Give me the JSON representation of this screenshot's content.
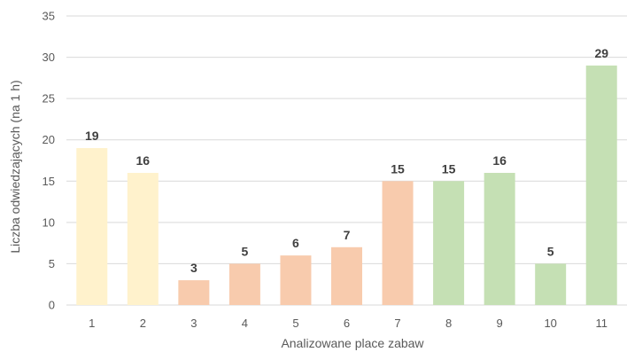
{
  "chart_data": {
    "type": "bar",
    "categories": [
      "1",
      "2",
      "3",
      "4",
      "5",
      "6",
      "7",
      "8",
      "9",
      "10",
      "11"
    ],
    "values": [
      19,
      16,
      3,
      5,
      6,
      7,
      15,
      15,
      16,
      5,
      29
    ],
    "bar_colors": [
      "#fff2cc",
      "#fff2cc",
      "#f8cbad",
      "#f8cbad",
      "#f8cbad",
      "#f8cbad",
      "#f8cbad",
      "#c5e0b4",
      "#c5e0b4",
      "#c5e0b4",
      "#c5e0b4"
    ],
    "data_labels": [
      "19",
      "16",
      "3",
      "5",
      "6",
      "7",
      "15",
      "15",
      "16",
      "5",
      "29"
    ],
    "title": "",
    "xlabel": "Analizowane place zabaw",
    "ylabel": "Liczba odwiedzających (na 1 h)",
    "ylim": [
      0,
      35
    ],
    "yticks": [
      "0",
      "5",
      "10",
      "15",
      "20",
      "25",
      "30",
      "35"
    ],
    "grid": true,
    "legend": "none"
  }
}
